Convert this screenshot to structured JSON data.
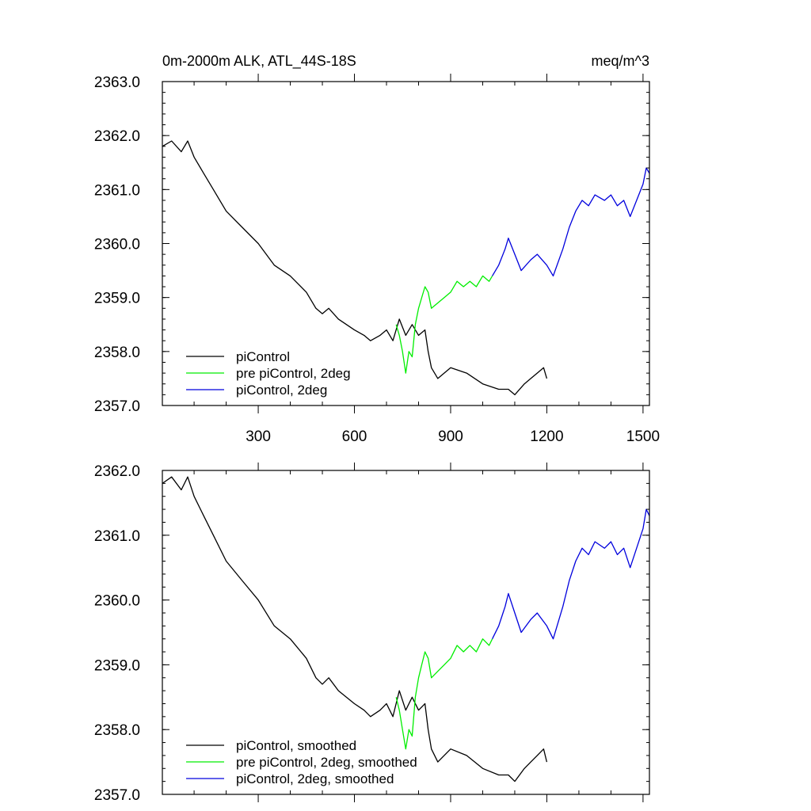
{
  "figure": {
    "title_left": "0m-2000m ALK, ATL_44S-18S",
    "title_right": "meq/m^3"
  },
  "chart_data": [
    {
      "type": "line",
      "title": "0m-2000m ALK, ATL_44S-18S",
      "units": "meq/m^3",
      "xlim": [
        1,
        1520
      ],
      "ylim": [
        2357.0,
        2363.0
      ],
      "x_ticks": [
        300,
        600,
        900,
        1200,
        1500
      ],
      "x_tick_labels": [
        "300",
        "600",
        "900",
        "1200",
        "1500"
      ],
      "y_ticks": [
        2357.0,
        2358.0,
        2359.0,
        2360.0,
        2361.0,
        2362.0,
        2363.0
      ],
      "y_tick_labels": [
        "2357.0",
        "2358.0",
        "2359.0",
        "2360.0",
        "2361.0",
        "2362.0",
        "2363.0"
      ],
      "legend_position": "bottom-left",
      "series": [
        {
          "name": "piControl",
          "color": "#000000",
          "x": [
            1,
            30,
            60,
            80,
            100,
            130,
            160,
            200,
            250,
            300,
            350,
            400,
            450,
            480,
            500,
            520,
            550,
            600,
            630,
            650,
            680,
            700,
            720,
            740,
            760,
            780,
            800,
            820,
            830,
            840,
            860,
            900,
            950,
            1000,
            1050,
            1080,
            1100,
            1130,
            1150,
            1170,
            1190,
            1200
          ],
          "y": [
            2361.8,
            2361.9,
            2361.7,
            2361.9,
            2361.6,
            2361.3,
            2361.0,
            2360.6,
            2360.3,
            2360.0,
            2359.6,
            2359.4,
            2359.1,
            2358.8,
            2358.7,
            2358.8,
            2358.6,
            2358.4,
            2358.3,
            2358.2,
            2358.3,
            2358.4,
            2358.2,
            2358.6,
            2358.3,
            2358.5,
            2358.3,
            2358.4,
            2358.0,
            2357.7,
            2357.5,
            2357.7,
            2357.6,
            2357.4,
            2357.3,
            2357.3,
            2357.2,
            2357.4,
            2357.5,
            2357.6,
            2357.7,
            2357.5
          ]
        },
        {
          "name": "pre piControl, 2deg",
          "color": "#00ee00",
          "x": [
            730,
            740,
            750,
            760,
            770,
            780,
            790,
            800,
            810,
            820,
            830,
            840,
            860,
            880,
            900,
            920,
            940,
            960,
            980,
            1000,
            1020,
            1030
          ],
          "y": [
            2358.5,
            2358.3,
            2358.0,
            2357.6,
            2358.0,
            2357.9,
            2358.5,
            2358.8,
            2359.0,
            2359.2,
            2359.1,
            2358.8,
            2358.9,
            2359.0,
            2359.1,
            2359.3,
            2359.2,
            2359.3,
            2359.2,
            2359.4,
            2359.3,
            2359.4
          ]
        },
        {
          "name": "piControl, 2deg",
          "color": "#0000dd",
          "x": [
            1030,
            1050,
            1070,
            1080,
            1100,
            1120,
            1150,
            1170,
            1200,
            1220,
            1250,
            1270,
            1290,
            1310,
            1330,
            1350,
            1380,
            1400,
            1420,
            1440,
            1460,
            1480,
            1500,
            1510,
            1520
          ],
          "y": [
            2359.4,
            2359.6,
            2359.9,
            2360.1,
            2359.8,
            2359.5,
            2359.7,
            2359.8,
            2359.6,
            2359.4,
            2359.9,
            2360.3,
            2360.6,
            2360.8,
            2360.7,
            2360.9,
            2360.8,
            2360.9,
            2360.7,
            2360.8,
            2360.5,
            2360.8,
            2361.1,
            2361.4,
            2361.3
          ]
        }
      ]
    },
    {
      "type": "line",
      "xlim": [
        1,
        1520
      ],
      "ylim": [
        2357.0,
        2362.0
      ],
      "x_ticks": [
        300,
        600,
        900,
        1200,
        1500
      ],
      "y_ticks": [
        2357.0,
        2358.0,
        2359.0,
        2360.0,
        2361.0,
        2362.0
      ],
      "y_tick_labels": [
        "2357.0",
        "2358.0",
        "2359.0",
        "2360.0",
        "2361.0",
        "2362.0"
      ],
      "legend_position": "bottom-left",
      "series": [
        {
          "name": "piControl, smoothed",
          "color": "#000000",
          "x": [
            1,
            30,
            60,
            80,
            100,
            130,
            160,
            200,
            250,
            300,
            350,
            400,
            450,
            480,
            500,
            520,
            550,
            600,
            630,
            650,
            680,
            700,
            720,
            740,
            760,
            780,
            800,
            820,
            830,
            840,
            860,
            900,
            950,
            1000,
            1050,
            1080,
            1100,
            1130,
            1150,
            1170,
            1190,
            1200
          ],
          "y": [
            2361.8,
            2361.9,
            2361.7,
            2361.9,
            2361.6,
            2361.3,
            2361.0,
            2360.6,
            2360.3,
            2360.0,
            2359.6,
            2359.4,
            2359.1,
            2358.8,
            2358.7,
            2358.8,
            2358.6,
            2358.4,
            2358.3,
            2358.2,
            2358.3,
            2358.4,
            2358.2,
            2358.6,
            2358.3,
            2358.5,
            2358.3,
            2358.4,
            2358.0,
            2357.7,
            2357.5,
            2357.7,
            2357.6,
            2357.4,
            2357.3,
            2357.3,
            2357.2,
            2357.4,
            2357.5,
            2357.6,
            2357.7,
            2357.5
          ]
        },
        {
          "name": "pre piControl, 2deg, smoothed",
          "color": "#00ee00",
          "x": [
            730,
            740,
            750,
            760,
            770,
            780,
            790,
            800,
            810,
            820,
            830,
            840,
            860,
            880,
            900,
            920,
            940,
            960,
            980,
            1000,
            1020,
            1030
          ],
          "y": [
            2358.5,
            2358.3,
            2358.0,
            2357.7,
            2358.0,
            2357.9,
            2358.5,
            2358.8,
            2359.0,
            2359.2,
            2359.1,
            2358.8,
            2358.9,
            2359.0,
            2359.1,
            2359.3,
            2359.2,
            2359.3,
            2359.2,
            2359.4,
            2359.3,
            2359.4
          ]
        },
        {
          "name": "piControl, 2deg, smoothed",
          "color": "#0000dd",
          "x": [
            1030,
            1050,
            1070,
            1080,
            1100,
            1120,
            1150,
            1170,
            1200,
            1220,
            1250,
            1270,
            1290,
            1310,
            1330,
            1350,
            1380,
            1400,
            1420,
            1440,
            1460,
            1480,
            1500,
            1510,
            1520
          ],
          "y": [
            2359.4,
            2359.6,
            2359.9,
            2360.1,
            2359.8,
            2359.5,
            2359.7,
            2359.8,
            2359.6,
            2359.4,
            2359.9,
            2360.3,
            2360.6,
            2360.8,
            2360.7,
            2360.9,
            2360.8,
            2360.9,
            2360.7,
            2360.8,
            2360.5,
            2360.8,
            2361.1,
            2361.4,
            2361.3
          ]
        }
      ]
    }
  ]
}
